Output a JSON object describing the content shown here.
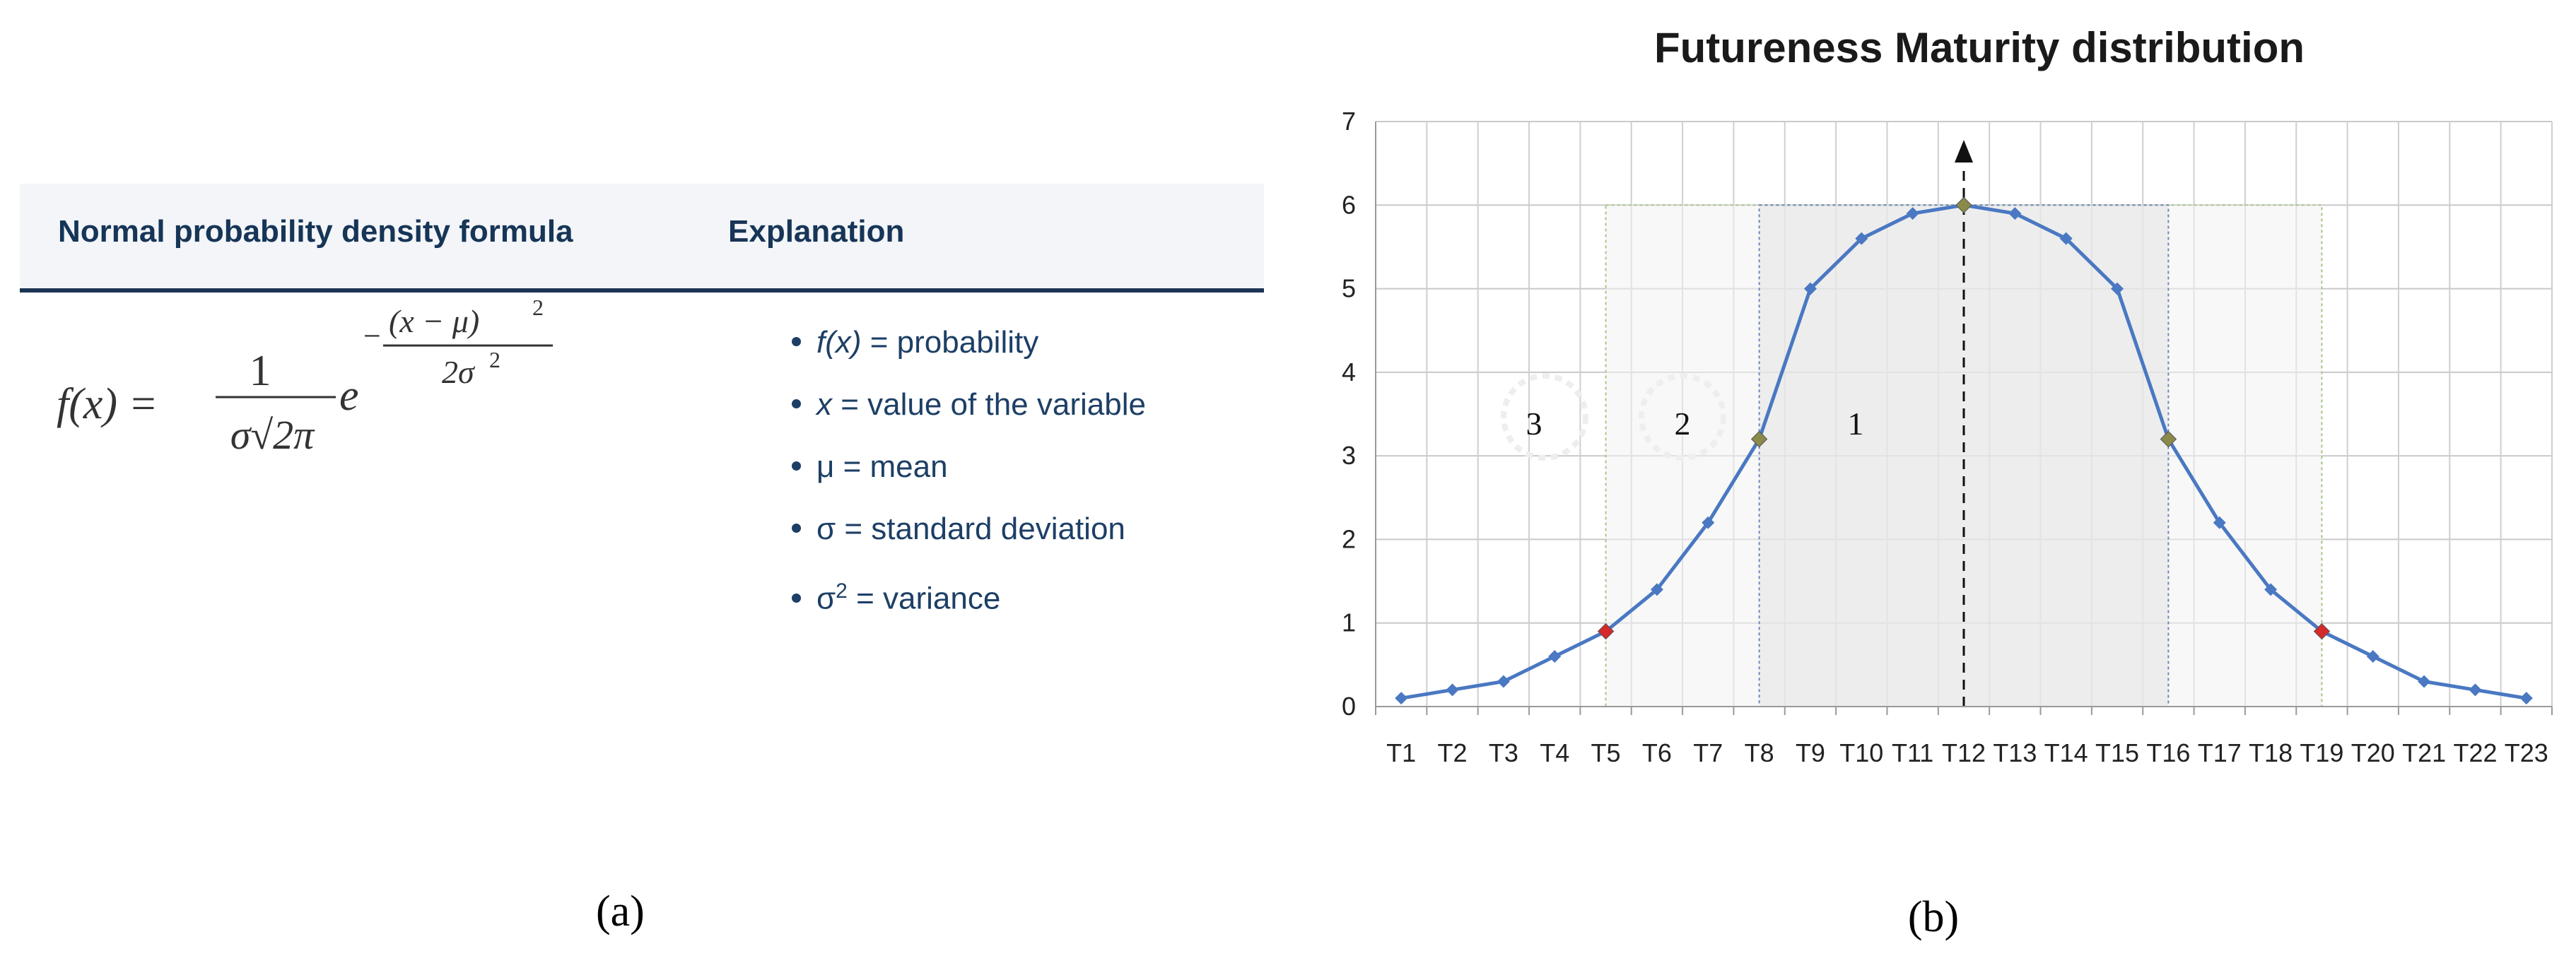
{
  "panel_a": {
    "col_formula_header": "Normal probability density formula",
    "col_explanation_header": "Explanation",
    "formula": {
      "lhs": "f(x) =",
      "numerator": "1",
      "denominator": "σ√2π",
      "base": "e",
      "exp_minus": "−",
      "exp_numerator": "(x − μ)",
      "exp_numerator_power": "2",
      "exp_denominator": "2σ",
      "exp_denominator_power": "2"
    },
    "bullets": [
      {
        "symbol": "f(x)",
        "symbol_style": "italic",
        "sup": "",
        "text": " = probability"
      },
      {
        "symbol": "x",
        "symbol_style": "italic",
        "sup": "",
        "text": " = value of the variable"
      },
      {
        "symbol": "μ",
        "symbol_style": "normal",
        "sup": "",
        "text": " = mean"
      },
      {
        "symbol": "σ",
        "symbol_style": "normal",
        "sup": "",
        "text": " = standard deviation"
      },
      {
        "symbol": "σ",
        "symbol_style": "normal",
        "sup": "2",
        "text": " = variance"
      }
    ],
    "label": "(a)"
  },
  "panel_b": {
    "label": "(b)"
  },
  "chart_data": {
    "type": "line",
    "title": "Futureness Maturity distribution",
    "xlabel": "",
    "ylabel": "",
    "categories": [
      "T1",
      "T2",
      "T3",
      "T4",
      "T5",
      "T6",
      "T7",
      "T8",
      "T9",
      "T10",
      "T11",
      "T12",
      "T13",
      "T14",
      "T15",
      "T16",
      "T17",
      "T18",
      "T19",
      "T20",
      "T21",
      "T22",
      "T23"
    ],
    "series": [
      {
        "values": [
          0.1,
          0.2,
          0.3,
          0.6,
          0.9,
          1.4,
          2.2,
          3.2,
          5.0,
          5.6,
          5.9,
          6.0,
          5.9,
          5.6,
          5.0,
          3.2,
          2.2,
          1.4,
          0.9,
          0.6,
          0.3,
          0.2,
          0.1
        ]
      }
    ],
    "ylim": [
      0,
      7
    ],
    "yticks": [
      0,
      1,
      2,
      3,
      4,
      5,
      6,
      7
    ],
    "grid": true,
    "colors": {
      "line": "#4a78c2",
      "marker": "#4a78c2",
      "special_red": "#d42a2a",
      "special_olive": "#8a8a4a",
      "outer_box": "#a8c48a",
      "inner_box": "#6f86b8",
      "shade": "#f2f2f2"
    },
    "highlighted_points": [
      {
        "category": "T5",
        "color": "red"
      },
      {
        "category": "T8",
        "color": "olive"
      },
      {
        "category": "T12",
        "color": "olive"
      },
      {
        "category": "T16",
        "color": "olive"
      },
      {
        "category": "T19",
        "color": "red"
      }
    ],
    "regions": [
      {
        "label": "3"
      },
      {
        "label": "2",
        "from": "T5",
        "to": "T19",
        "y_top": 6
      },
      {
        "label": "1",
        "from": "T8",
        "to": "T16",
        "y_top": 6
      }
    ],
    "mean_arrow": {
      "category": "T12",
      "style": "dashed",
      "arrowhead": "up"
    }
  }
}
